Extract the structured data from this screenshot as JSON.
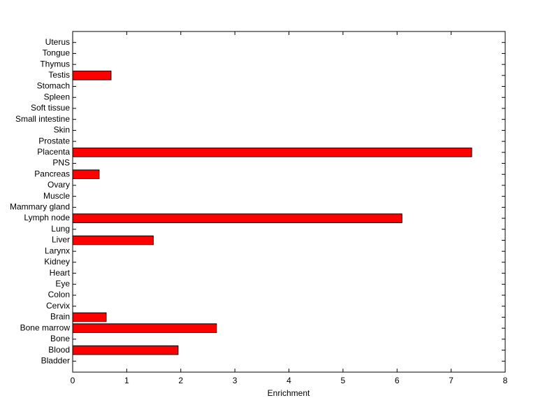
{
  "chart_data": {
    "type": "barh",
    "xlabel": "Enrichment",
    "categories": [
      "Bladder",
      "Blood",
      "Bone",
      "Bone marrow",
      "Brain",
      "Cervix",
      "Colon",
      "Eye",
      "Heart",
      "Kidney",
      "Larynx",
      "Liver",
      "Lung",
      "Lymph node",
      "Mammary gland",
      "Muscle",
      "Ovary",
      "Pancreas",
      "PNS",
      "Placenta",
      "Prostate",
      "Skin",
      "Small intestine",
      "Soft tissue",
      "Spleen",
      "Stomach",
      "Testis",
      "Thymus",
      "Tongue",
      "Uterus"
    ],
    "values": [
      0,
      1.95,
      0,
      2.66,
      0.62,
      0,
      0,
      0,
      0,
      0,
      0,
      1.49,
      0,
      6.09,
      0,
      0,
      0,
      0.49,
      0,
      7.38,
      0,
      0,
      0,
      0,
      0,
      0,
      0.71,
      0,
      0,
      0
    ],
    "color": "#ff0000",
    "xlim": [
      0,
      8
    ],
    "xticks": [
      0,
      1,
      2,
      3,
      4,
      5,
      6,
      7,
      8
    ]
  }
}
